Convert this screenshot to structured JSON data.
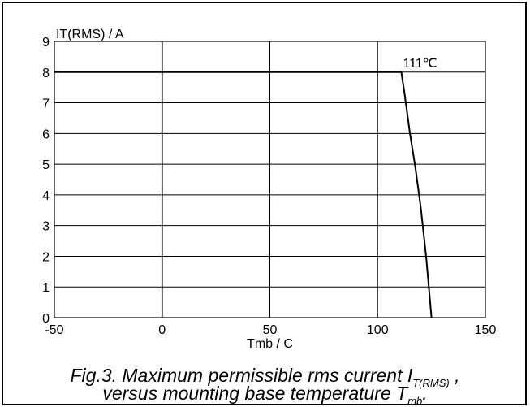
{
  "chart_data": {
    "type": "line",
    "title": "",
    "ylabel": "IT(RMS) / A",
    "xlabel": "Tmb / C",
    "xlim": [
      -50,
      150
    ],
    "ylim": [
      0,
      9
    ],
    "x_ticks": [
      "-50",
      "0",
      "50",
      "100",
      "150"
    ],
    "y_ticks": [
      "0",
      "1",
      "2",
      "3",
      "4",
      "5",
      "6",
      "7",
      "8",
      "9"
    ],
    "grid": true,
    "series": [
      {
        "x": [
          -50,
          111,
          112.5,
          115,
          117.5,
          120,
          122.5,
          125
        ],
        "y": [
          8,
          8,
          7.3,
          6.0,
          4.9,
          3.6,
          2.0,
          0
        ]
      }
    ],
    "annotations": [
      {
        "text": "111℃",
        "x": 111,
        "y": 8
      }
    ],
    "line_color": "#000000",
    "grid_color": "#000000"
  },
  "caption": {
    "line1_prefix": "Fig.3.  Maximum permissible rms current I",
    "line1_sub": "T(RMS)",
    "line1_suffix": " ,",
    "line2_prefix": "versus mounting base temperature T",
    "line2_sub": "mb",
    "line2_suffix": "."
  }
}
